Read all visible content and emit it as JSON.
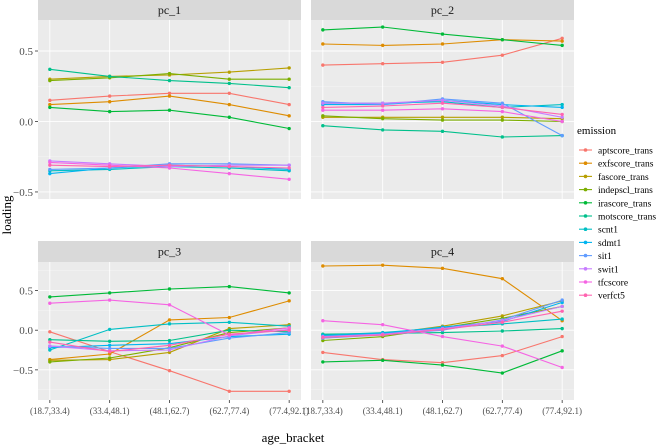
{
  "chart_data": {
    "type": "line",
    "xlabel": "age_bracket",
    "ylabel": "loading",
    "categories": [
      "(18.7,33.4)",
      "(33.4,48.1)",
      "(48.1,62.7)",
      "(62.7,77.4)",
      "(77.4,92.1)"
    ],
    "y_ticks_top": [
      -0.5,
      0.0,
      0.5
    ],
    "y_ticks_top_labels": [
      "−0.5",
      "0.0",
      "0.5"
    ],
    "y_ticks_bottom": [
      -0.5,
      0.0,
      0.5
    ],
    "y_ticks_bottom_labels": [
      "−0.5",
      "0.0",
      "0.5"
    ],
    "ylim_top": [
      -0.55,
      0.72
    ],
    "ylim_bottom": [
      -0.88,
      0.86
    ],
    "legend": {
      "title": "emission",
      "entries": [
        "aptscore_trans",
        "exfscore_trans",
        "fascore_trans",
        "indepscl_trans",
        "irascore_trans",
        "motscore_trans",
        "scnt1",
        "sdmt1",
        "sit1",
        "swit1",
        "tfcscore",
        "verfct5"
      ]
    },
    "colors": [
      "#F8766D",
      "#DE8C00",
      "#B79F00",
      "#7CAE00",
      "#00BA38",
      "#00C08B",
      "#00BFC4",
      "#00B4F0",
      "#619CFF",
      "#C77CFF",
      "#F564E3",
      "#FF64B0"
    ],
    "panels": [
      {
        "title": "pc_1",
        "series": [
          {
            "name": "aptscore_trans",
            "values": [
              0.15,
              0.18,
              0.2,
              0.2,
              0.12
            ]
          },
          {
            "name": "exfscore_trans",
            "values": [
              0.12,
              0.14,
              0.18,
              0.12,
              0.04
            ]
          },
          {
            "name": "fascore_trans",
            "values": [
              0.3,
              0.32,
              0.33,
              0.35,
              0.38
            ]
          },
          {
            "name": "indepscl_trans",
            "values": [
              0.29,
              0.31,
              0.34,
              0.3,
              0.3
            ]
          },
          {
            "name": "irascore_trans",
            "values": [
              0.1,
              0.07,
              0.08,
              0.03,
              -0.05
            ]
          },
          {
            "name": "motscore_trans",
            "values": [
              0.37,
              0.32,
              0.29,
              0.27,
              0.24
            ]
          },
          {
            "name": "scnt1",
            "values": [
              -0.35,
              -0.34,
              -0.32,
              -0.33,
              -0.35
            ]
          },
          {
            "name": "sdmt1",
            "values": [
              -0.37,
              -0.33,
              -0.31,
              -0.32,
              -0.34
            ]
          },
          {
            "name": "sit1",
            "values": [
              -0.34,
              -0.33,
              -0.3,
              -0.3,
              -0.31
            ]
          },
          {
            "name": "swit1",
            "values": [
              -0.28,
              -0.3,
              -0.32,
              -0.31,
              -0.31
            ]
          },
          {
            "name": "tfcscore",
            "values": [
              -0.29,
              -0.31,
              -0.33,
              -0.37,
              -0.41
            ]
          },
          {
            "name": "verfct5",
            "values": [
              -0.31,
              -0.32,
              -0.31,
              -0.32,
              -0.33
            ]
          }
        ]
      },
      {
        "title": "pc_2",
        "series": [
          {
            "name": "aptscore_trans",
            "values": [
              0.4,
              0.41,
              0.42,
              0.47,
              0.59
            ]
          },
          {
            "name": "exfscore_trans",
            "values": [
              0.55,
              0.54,
              0.55,
              0.58,
              0.57
            ]
          },
          {
            "name": "fascore_trans",
            "values": [
              0.03,
              0.03,
              0.03,
              0.03,
              0.02
            ]
          },
          {
            "name": "indepscl_trans",
            "values": [
              0.04,
              0.02,
              0.01,
              0.01,
              0.0
            ]
          },
          {
            "name": "irascore_trans",
            "values": [
              0.65,
              0.67,
              0.62,
              0.58,
              0.54
            ]
          },
          {
            "name": "motscore_trans",
            "values": [
              -0.03,
              -0.06,
              -0.07,
              -0.11,
              -0.1
            ]
          },
          {
            "name": "scnt1",
            "values": [
              0.13,
              0.13,
              0.14,
              0.1,
              0.12
            ]
          },
          {
            "name": "sdmt1",
            "values": [
              0.12,
              0.12,
              0.15,
              0.12,
              0.1
            ]
          },
          {
            "name": "sit1",
            "values": [
              0.14,
              0.12,
              0.16,
              0.13,
              -0.1
            ]
          },
          {
            "name": "swit1",
            "values": [
              0.13,
              0.13,
              0.15,
              0.11,
              0.03
            ]
          },
          {
            "name": "tfcscore",
            "values": [
              0.08,
              0.08,
              0.09,
              0.07,
              0.0
            ]
          },
          {
            "name": "verfct5",
            "values": [
              0.1,
              0.11,
              0.13,
              0.1,
              0.05
            ]
          }
        ]
      },
      {
        "title": "pc_3",
        "series": [
          {
            "name": "aptscore_trans",
            "values": [
              -0.02,
              -0.27,
              -0.51,
              -0.77,
              -0.77
            ]
          },
          {
            "name": "exfscore_trans",
            "values": [
              -0.37,
              -0.3,
              0.13,
              0.16,
              0.37
            ]
          },
          {
            "name": "fascore_trans",
            "values": [
              -0.38,
              -0.37,
              -0.28,
              0.02,
              0.07
            ]
          },
          {
            "name": "indepscl_trans",
            "values": [
              -0.4,
              -0.35,
              -0.22,
              -0.03,
              0.03
            ]
          },
          {
            "name": "irascore_trans",
            "values": [
              0.42,
              0.47,
              0.52,
              0.55,
              0.47
            ]
          },
          {
            "name": "motscore_trans",
            "values": [
              -0.12,
              -0.14,
              -0.13,
              0.0,
              -0.02
            ]
          },
          {
            "name": "scnt1",
            "values": [
              -0.25,
              0.01,
              0.08,
              0.1,
              0.05
            ]
          },
          {
            "name": "sdmt1",
            "values": [
              -0.22,
              -0.19,
              -0.17,
              -0.08,
              -0.05
            ]
          },
          {
            "name": "sit1",
            "values": [
              -0.2,
              -0.23,
              -0.23,
              -0.1,
              -0.03
            ]
          },
          {
            "name": "swit1",
            "values": [
              -0.2,
              -0.26,
              -0.25,
              -0.07,
              0.01
            ]
          },
          {
            "name": "tfcscore",
            "values": [
              0.34,
              0.38,
              0.32,
              -0.06,
              0.03
            ]
          },
          {
            "name": "verfct5",
            "values": [
              -0.15,
              -0.27,
              -0.19,
              -0.05,
              0.0
            ]
          }
        ]
      },
      {
        "title": "pc_4",
        "series": [
          {
            "name": "aptscore_trans",
            "values": [
              -0.28,
              -0.37,
              -0.41,
              -0.32,
              -0.08
            ]
          },
          {
            "name": "exfscore_trans",
            "values": [
              0.81,
              0.82,
              0.78,
              0.65,
              0.12
            ]
          },
          {
            "name": "fascore_trans",
            "values": [
              -0.1,
              -0.05,
              0.05,
              0.18,
              0.37
            ]
          },
          {
            "name": "indepscl_trans",
            "values": [
              -0.13,
              -0.08,
              0.03,
              0.15,
              0.3
            ]
          },
          {
            "name": "irascore_trans",
            "values": [
              -0.4,
              -0.38,
              -0.44,
              -0.54,
              -0.26
            ]
          },
          {
            "name": "motscore_trans",
            "values": [
              -0.05,
              -0.04,
              -0.03,
              -0.01,
              0.02
            ]
          },
          {
            "name": "scnt1",
            "values": [
              -0.06,
              -0.03,
              0.03,
              0.08,
              0.14
            ]
          },
          {
            "name": "sdmt1",
            "values": [
              -0.07,
              -0.04,
              0.04,
              0.11,
              0.35
            ]
          },
          {
            "name": "sit1",
            "values": [
              -0.1,
              -0.06,
              0.0,
              0.13,
              0.38
            ]
          },
          {
            "name": "swit1",
            "values": [
              -0.08,
              -0.05,
              0.02,
              0.12,
              0.3
            ]
          },
          {
            "name": "tfcscore",
            "values": [
              0.12,
              0.07,
              -0.08,
              -0.2,
              -0.47
            ]
          },
          {
            "name": "verfct5",
            "values": [
              -0.09,
              -0.06,
              0.01,
              0.1,
              0.24
            ]
          }
        ]
      }
    ]
  }
}
